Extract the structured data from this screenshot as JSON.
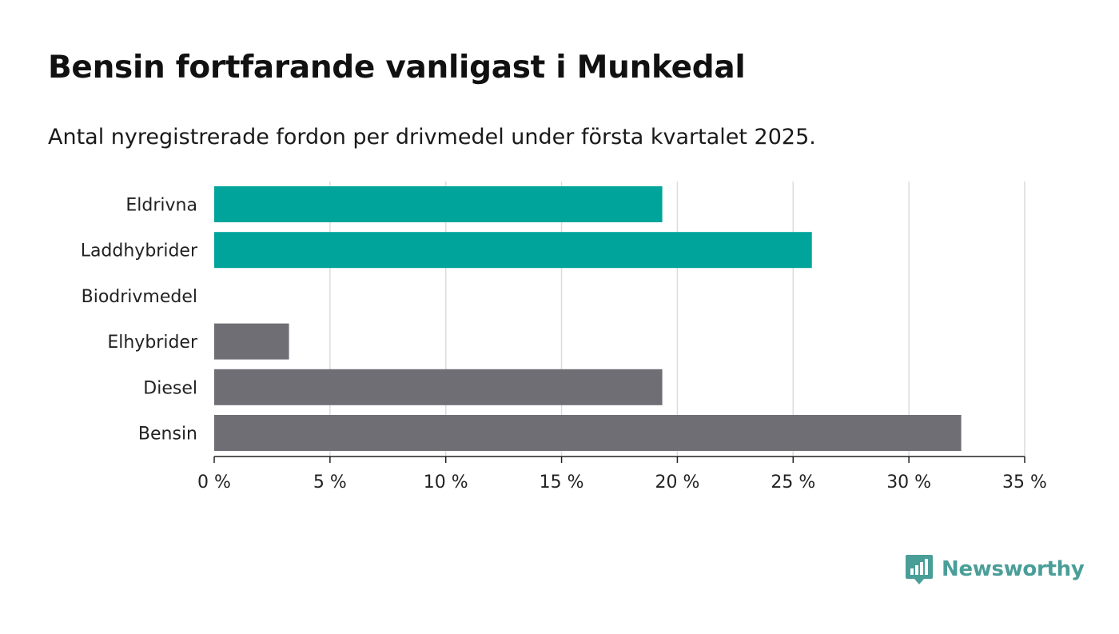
{
  "header": {
    "title": "Bensin fortfarande vanligast i Munkedal",
    "subtitle": "Antal nyregistrerade fordon per drivmedel under första kvartalet 2025."
  },
  "brand": {
    "name": "Newsworthy",
    "icon": "bar-chart-speech-bubble-icon",
    "color": "#4a9e98"
  },
  "chart_data": {
    "type": "bar",
    "orientation": "horizontal",
    "title": "Bensin fortfarande vanligast i Munkedal",
    "subtitle": "Antal nyregistrerade fordon per drivmedel under första kvartalet 2025.",
    "xlabel": "",
    "ylabel": "",
    "xlim": [
      0,
      35
    ],
    "x_ticks": [
      0,
      5,
      10,
      15,
      20,
      25,
      30,
      35
    ],
    "tick_format_suffix": " %",
    "grid": true,
    "legend": "none",
    "categories": [
      "Eldrivna",
      "Laddhybrider",
      "Biodrivmedel",
      "Elhybrider",
      "Diesel",
      "Bensin"
    ],
    "values": [
      19.35,
      25.81,
      0,
      3.23,
      19.35,
      32.26
    ],
    "colors": [
      "#00a49a",
      "#00a49a",
      "#00a49a",
      "#6f6e75",
      "#6f6e75",
      "#6f6e75"
    ]
  }
}
